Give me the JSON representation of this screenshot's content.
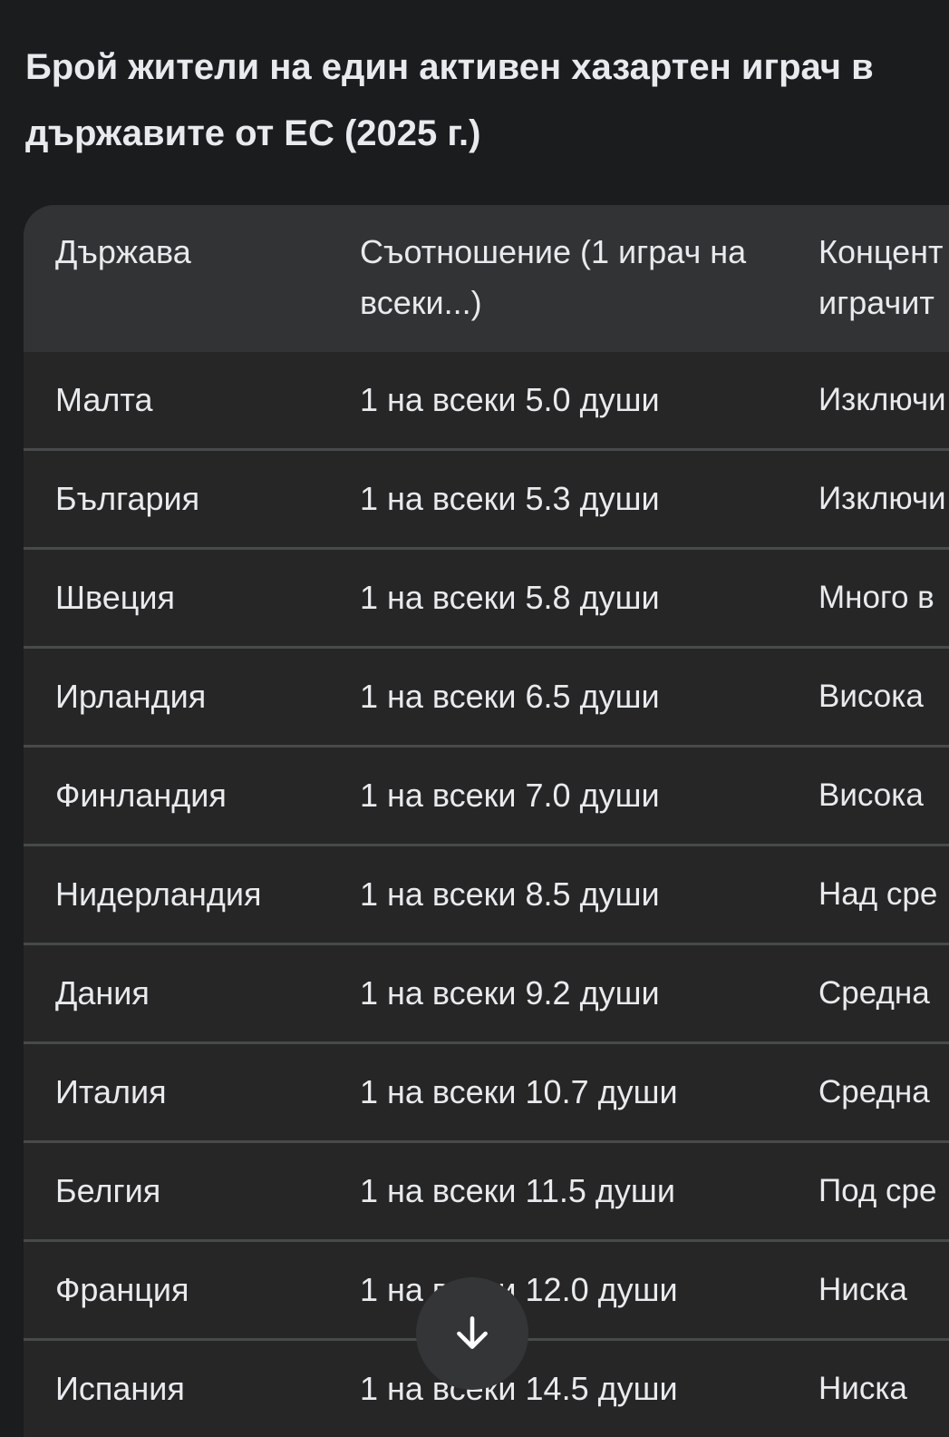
{
  "title": "Брой жители на един активен хазартен играч в държавите от ЕС (2025 г.)",
  "table": {
    "headers": [
      "Държава",
      "Съотношение (1 играч на всеки...)",
      "Концент играчит"
    ],
    "rows": [
      [
        "Малта",
        "1 на всеки 5.0 души",
        "Изключи"
      ],
      [
        "България",
        "1 на всеки 5.3 души",
        "Изключи"
      ],
      [
        "Швеция",
        "1 на всеки 5.8 души",
        "Много в"
      ],
      [
        "Ирландия",
        "1 на всеки 6.5 души",
        "Висока"
      ],
      [
        "Финландия",
        "1 на всеки 7.0 души",
        "Висока"
      ],
      [
        "Нидерландия",
        "1 на всеки 8.5 души",
        "Над сре"
      ],
      [
        "Дания",
        "1 на всеки 9.2 души",
        "Средна"
      ],
      [
        "Италия",
        "1 на всеки 10.7 души",
        "Средна"
      ],
      [
        "Белгия",
        "1 на всеки 11.5 души",
        "Под сре"
      ],
      [
        "Франция",
        "1 на всеки 12.0 души",
        "Ниска"
      ],
      [
        "Испания",
        "1 на всеки 14.5 души",
        "Ниска"
      ]
    ]
  },
  "scroll_button": {
    "icon": "arrow-down-icon"
  },
  "colors": {
    "background": "#1b1c1e",
    "header": "#323335",
    "row": "#262626",
    "divider": "#474a4b"
  }
}
